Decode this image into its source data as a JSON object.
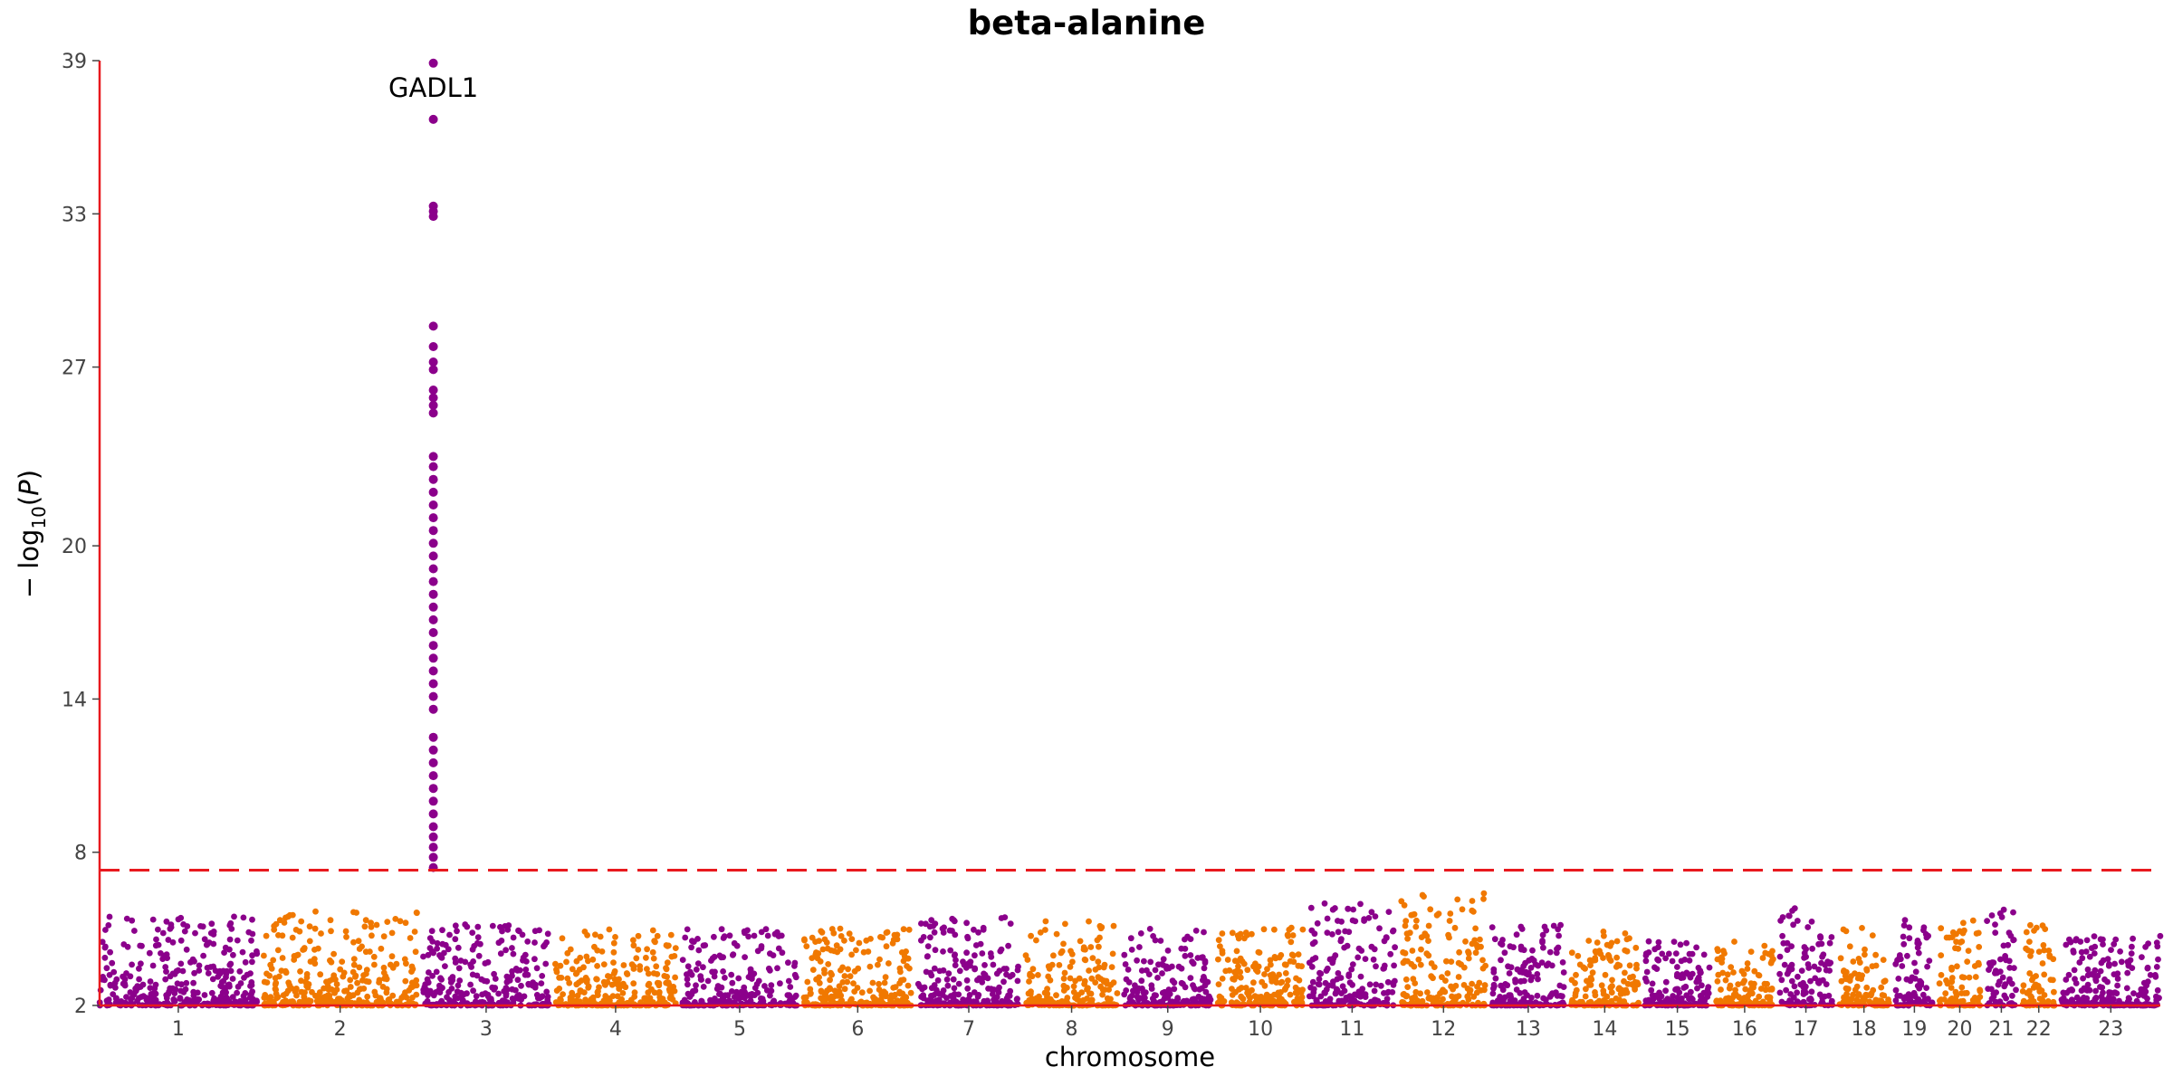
{
  "chart_data": {
    "type": "scatter",
    "title": "beta-alanine",
    "xlabel": "chromosome",
    "ylabel": "−log10(P)",
    "ylim": [
      2,
      39
    ],
    "yticks": [
      2,
      8,
      14,
      20,
      27,
      33,
      39
    ],
    "significance_threshold": 7.3,
    "colors": {
      "odd": "#8B008B",
      "even": "#F07800",
      "axis": "#E8191E",
      "threshold": "#E8191E"
    },
    "grid": false,
    "legend": "none",
    "chromosomes": [
      {
        "label": "1",
        "width": 248,
        "peak": 5.5
      },
      {
        "label": "2",
        "width": 242,
        "peak": 5.7
      },
      {
        "label": "3",
        "width": 198,
        "peak": 5.2
      },
      {
        "label": "4",
        "width": 190,
        "peak": 5.0
      },
      {
        "label": "5",
        "width": 181,
        "peak": 5.0
      },
      {
        "label": "6",
        "width": 171,
        "peak": 5.1
      },
      {
        "label": "7",
        "width": 159,
        "peak": 5.5
      },
      {
        "label": "8",
        "width": 145,
        "peak": 5.4
      },
      {
        "label": "9",
        "width": 138,
        "peak": 5.0
      },
      {
        "label": "10",
        "width": 134,
        "peak": 5.1
      },
      {
        "label": "11",
        "width": 135,
        "peak": 6.0
      },
      {
        "label": "12",
        "width": 133,
        "peak": 6.4
      },
      {
        "label": "13",
        "width": 114,
        "peak": 5.2
      },
      {
        "label": "14",
        "width": 107,
        "peak": 4.9
      },
      {
        "label": "15",
        "width": 102,
        "peak": 4.6
      },
      {
        "label": "16",
        "width": 90,
        "peak": 4.8
      },
      {
        "label": "17",
        "width": 83,
        "peak": 6.0
      },
      {
        "label": "18",
        "width": 80,
        "peak": 5.1
      },
      {
        "label": "19",
        "width": 59,
        "peak": 5.4
      },
      {
        "label": "20",
        "width": 64,
        "peak": 5.4
      },
      {
        "label": "21",
        "width": 47,
        "peak": 6.0
      },
      {
        "label": "22",
        "width": 51,
        "peak": 5.7
      },
      {
        "label": "23",
        "width": 156,
        "peak": 4.8
      }
    ],
    "significant_points": [
      {
        "chromosome": "3",
        "y": [
          38.9,
          36.7,
          33.3,
          33.1,
          32.9,
          28.6,
          27.8,
          27.2,
          26.9,
          26.1,
          25.8,
          25.5,
          25.2,
          23.5,
          23.1,
          22.6,
          22.1,
          21.6,
          21.1,
          20.6,
          20.1,
          19.6,
          19.1,
          18.6,
          18.1,
          17.6,
          17.1,
          16.6,
          16.1,
          15.6,
          15.1,
          14.6,
          14.1,
          13.6,
          12.5,
          12.0,
          11.5,
          11.0,
          10.5,
          10.0,
          9.5,
          9.0,
          8.6,
          8.2,
          7.8,
          7.4
        ]
      }
    ],
    "annotations": [
      {
        "text": "GADL1",
        "chromosome": "3",
        "y": 38.9
      }
    ]
  }
}
